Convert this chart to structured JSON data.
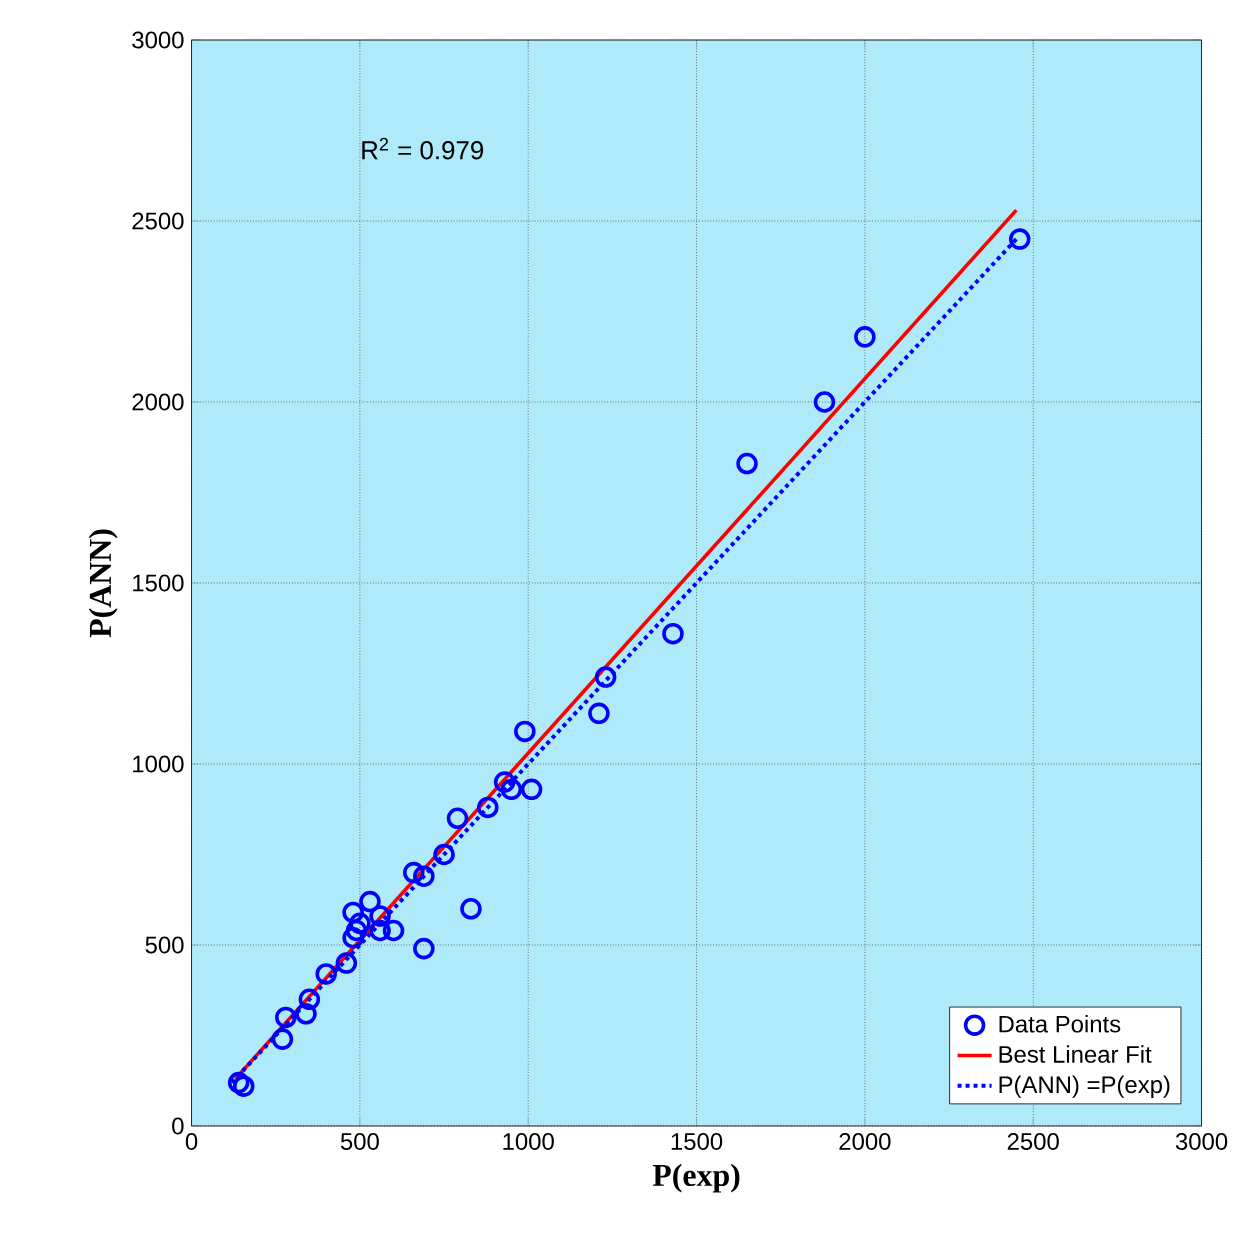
{
  "chart_data": {
    "type": "scatter",
    "xlabel": "P(exp)",
    "ylabel": "P(ANN)",
    "annotations": [
      "R$^{2}$ = 0.979"
    ],
    "xlim": [
      0,
      3000
    ],
    "ylim": [
      0,
      3000
    ],
    "xticks": [
      0,
      500,
      1000,
      1500,
      2000,
      2500,
      3000
    ],
    "yticks": [
      0,
      500,
      1000,
      1500,
      2000,
      2500,
      3000
    ],
    "grid": true,
    "legend": "bottom right",
    "series": [
      {
        "name": "Data Points",
        "marker": "circle",
        "color": "#0000ff",
        "x": [
          140,
          155,
          270,
          280,
          340,
          350,
          400,
          460,
          480,
          490,
          500,
          480,
          530,
          560,
          560,
          600,
          660,
          690,
          690,
          750,
          790,
          830,
          880,
          930,
          950,
          1010,
          990,
          1210,
          1230,
          1430,
          1650,
          1880,
          2000,
          2460
        ],
        "values": [
          120,
          110,
          240,
          300,
          310,
          350,
          420,
          450,
          590,
          540,
          560,
          520,
          620,
          540,
          580,
          540,
          700,
          690,
          490,
          750,
          850,
          600,
          880,
          950,
          930,
          930,
          1090,
          1140,
          1240,
          1360,
          1830,
          2000,
          2180,
          2450
        ]
      },
      {
        "name": "Best Linear Fit",
        "type": "line",
        "line_style": "solid",
        "color": "#ff0000",
        "x": [
          130,
          2450
        ],
        "values": [
          130,
          2530
        ]
      },
      {
        "name": "P(ANN) =P(exp)",
        "type": "line",
        "line_style": "dotted",
        "color": "#0000ff",
        "x": [
          120,
          2450
        ],
        "values": [
          120,
          2450
        ]
      }
    ]
  }
}
